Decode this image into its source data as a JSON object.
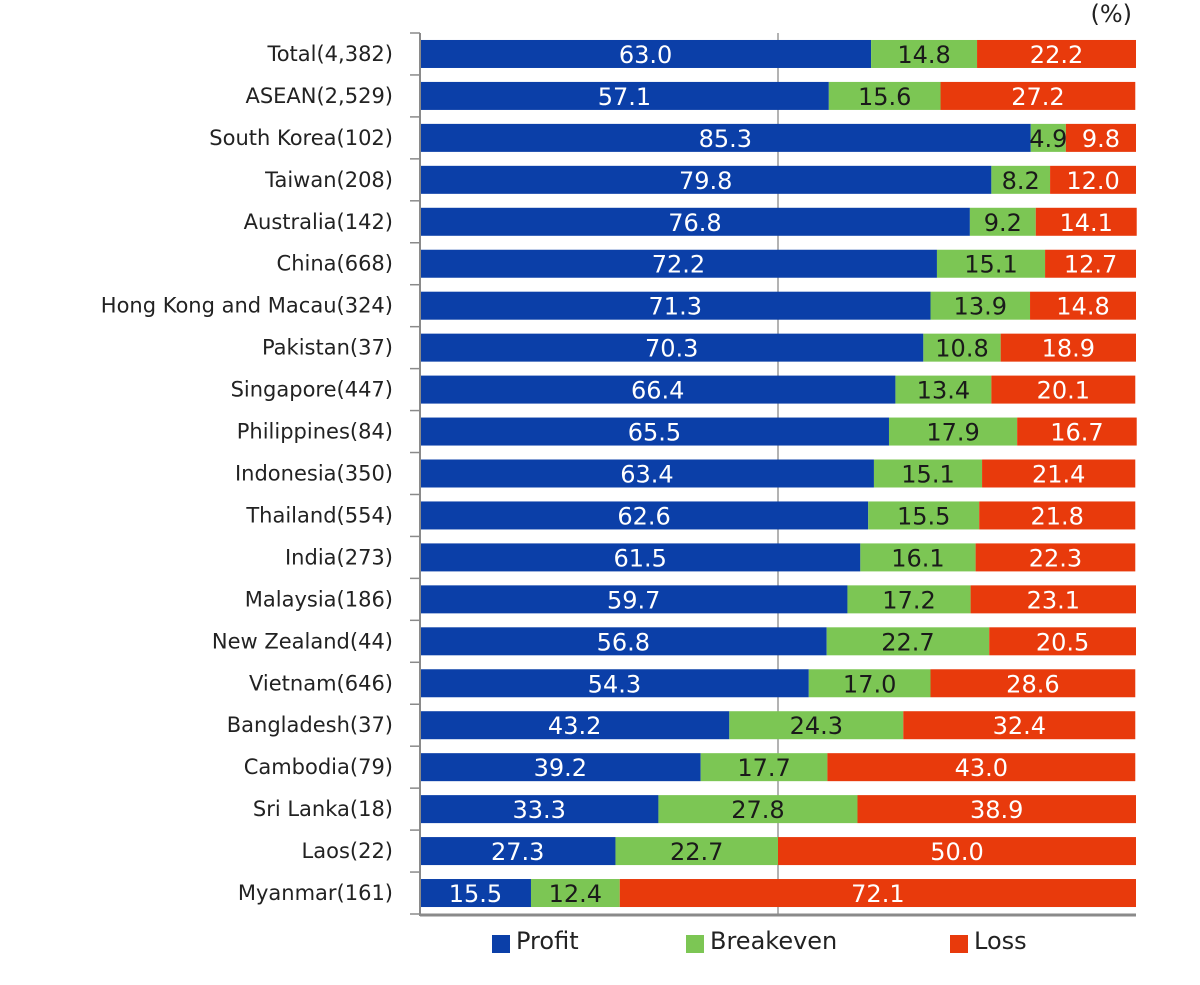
{
  "chart_data": {
    "type": "bar",
    "orientation": "horizontal",
    "stacked": true,
    "unit": "(%)",
    "categories": [
      "Total(4,382)",
      "ASEAN(2,529)",
      "South Korea(102)",
      "Taiwan(208)",
      "Australia(142)",
      "China(668)",
      "Hong Kong and Macau(324)",
      "Pakistan(37)",
      "Singapore(447)",
      "Philippines(84)",
      "Indonesia(350)",
      "Thailand(554)",
      "India(273)",
      "Malaysia(186)",
      "New Zealand(44)",
      "Vietnam(646)",
      "Bangladesh(37)",
      "Cambodia(79)",
      "Sri Lanka(18)",
      "Laos(22)",
      "Myanmar(161)"
    ],
    "series": [
      {
        "name": "Profit",
        "color": "#0b3fa8",
        "label_color": "#ffffff",
        "values": [
          63.0,
          57.1,
          85.3,
          79.8,
          76.8,
          72.2,
          71.3,
          70.3,
          66.4,
          65.5,
          63.4,
          62.6,
          61.5,
          59.7,
          56.8,
          54.3,
          43.2,
          39.2,
          33.3,
          27.3,
          15.5
        ]
      },
      {
        "name": "Breakeven",
        "color": "#7cc654",
        "label_color": "#1a1a1a",
        "values": [
          14.8,
          15.6,
          4.9,
          8.2,
          9.2,
          15.1,
          13.9,
          10.8,
          13.4,
          17.9,
          15.1,
          15.5,
          16.1,
          17.2,
          22.7,
          17.0,
          24.3,
          17.7,
          27.8,
          22.7,
          12.4
        ]
      },
      {
        "name": "Loss",
        "color": "#e83a0c",
        "label_color": "#ffffff",
        "values": [
          22.2,
          27.2,
          9.8,
          12.0,
          14.1,
          12.7,
          14.8,
          18.9,
          20.1,
          16.7,
          21.4,
          21.8,
          22.3,
          23.1,
          20.5,
          28.6,
          32.4,
          43.0,
          38.9,
          50.0,
          72.1
        ]
      }
    ],
    "xlim": [
      0,
      100
    ],
    "grid": "vertical line at 50",
    "legend_position": "bottom"
  }
}
